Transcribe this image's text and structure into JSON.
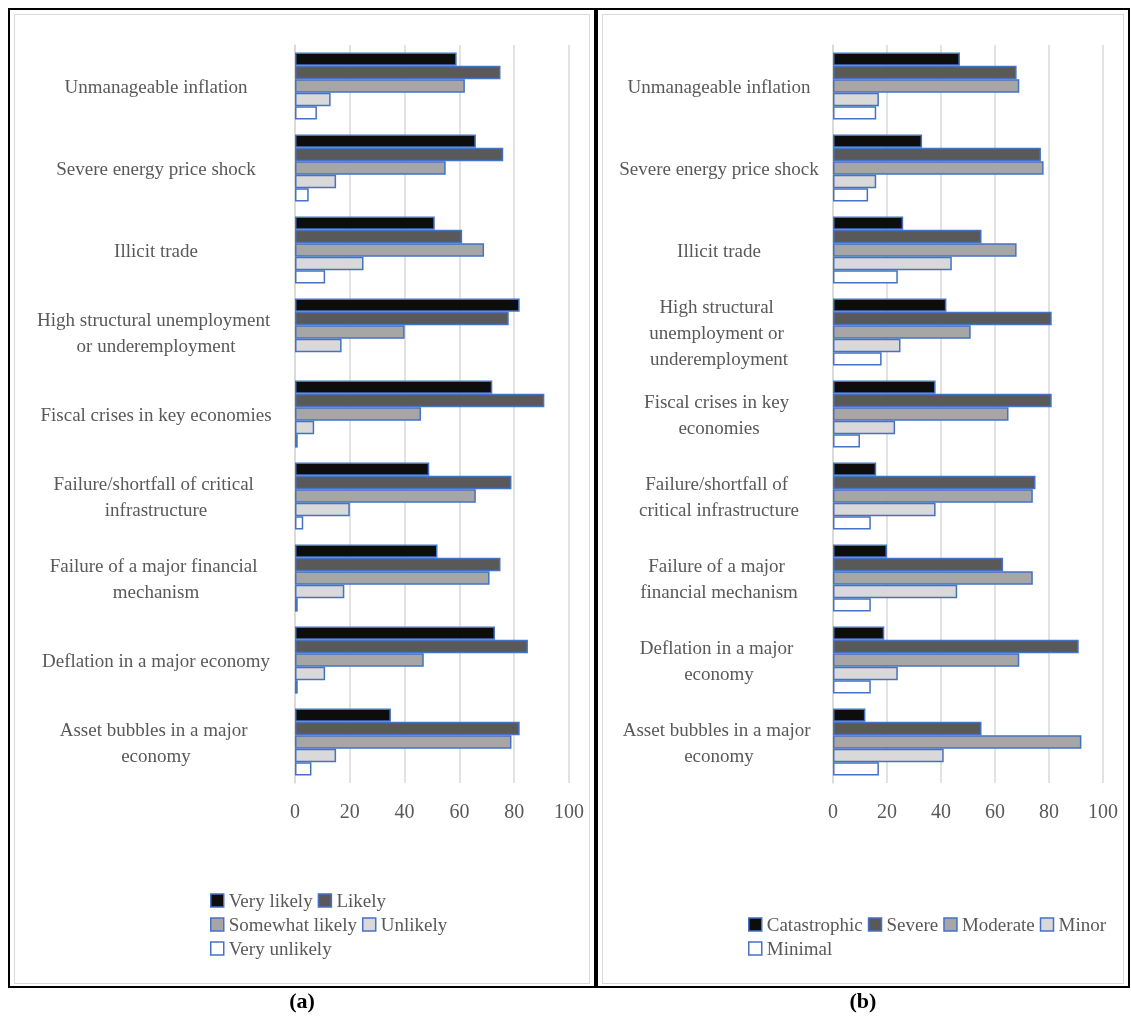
{
  "chart_data": [
    {
      "type": "bar",
      "orientation": "horizontal",
      "categories": [
        "Unmanageable inflation",
        "Severe energy price shock",
        "Illicit trade",
        "High structural unemployment or underemployment",
        "Fiscal crises in key economies",
        "Failure/shortfall of critical infrastructure",
        "Failure of a major financial mechanism",
        "Deflation in a major economy",
        "Asset bubbles in a major economy"
      ],
      "series": [
        {
          "name": "Very likely",
          "color": "#0d0d0d",
          "values": [
            59,
            66,
            51,
            82,
            72,
            49,
            52,
            73,
            35
          ]
        },
        {
          "name": "Likely",
          "color": "#595959",
          "values": [
            75,
            76,
            61,
            78,
            91,
            79,
            75,
            85,
            82
          ]
        },
        {
          "name": "Somewhat likely",
          "color": "#a6a6a6",
          "values": [
            62,
            55,
            69,
            40,
            46,
            66,
            71,
            47,
            79
          ]
        },
        {
          "name": "Unlikely",
          "color": "#d9d9d9",
          "values": [
            13,
            15,
            25,
            17,
            7,
            20,
            18,
            11,
            15
          ]
        },
        {
          "name": "Very unlikely",
          "color": "#ffffff",
          "values": [
            8,
            5,
            11,
            null,
            1,
            3,
            1,
            1,
            6
          ]
        }
      ],
      "xlim": [
        0,
        100
      ],
      "xticks": [
        0,
        20,
        40,
        60,
        80,
        100
      ],
      "grid": "x",
      "legend": "bottom",
      "annotations": [
        "(a)"
      ]
    },
    {
      "type": "bar",
      "orientation": "horizontal",
      "categories": [
        "Unmanageable inflation",
        "Severe energy price shock",
        "Illicit trade",
        "High structural unemployment or underemployment",
        "Fiscal crises in key economies",
        "Failure/shortfall of critical infrastructure",
        "Failure of a major financial mechanism",
        "Deflation in a major economy",
        "Asset bubbles in a major economy"
      ],
      "series": [
        {
          "name": "Catastrophic",
          "color": "#0d0d0d",
          "values": [
            47,
            33,
            26,
            42,
            38,
            16,
            20,
            19,
            12
          ]
        },
        {
          "name": "Severe",
          "color": "#595959",
          "values": [
            68,
            77,
            55,
            81,
            81,
            75,
            63,
            91,
            55
          ]
        },
        {
          "name": "Moderate",
          "color": "#a6a6a6",
          "values": [
            69,
            78,
            68,
            51,
            65,
            74,
            74,
            69,
            92
          ]
        },
        {
          "name": "Minor",
          "color": "#d9d9d9",
          "values": [
            17,
            16,
            44,
            25,
            23,
            38,
            46,
            24,
            41
          ]
        },
        {
          "name": "Minimal",
          "color": "#ffffff",
          "values": [
            16,
            13,
            24,
            18,
            10,
            14,
            14,
            14,
            17
          ]
        }
      ],
      "xlim": [
        0,
        100
      ],
      "xticks": [
        0,
        20,
        40,
        60,
        80,
        100
      ],
      "grid": "x",
      "legend": "bottom",
      "annotations": [
        "(b)"
      ]
    }
  ]
}
